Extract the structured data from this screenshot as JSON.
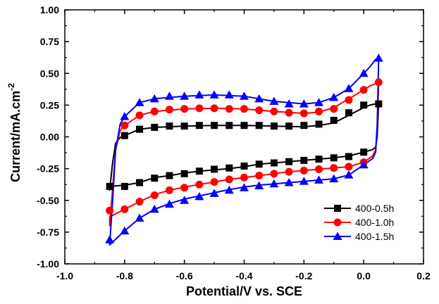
{
  "chart_data": {
    "type": "line",
    "xlabel": "Potential/V vs. SCE",
    "ylabel": "Current/mA.cm",
    "ylabel_sup": "-2",
    "xlim": [
      -1.0,
      0.2
    ],
    "ylim": [
      -1.0,
      1.0
    ],
    "x_ticks": [
      -1.0,
      -0.8,
      -0.6,
      -0.4,
      -0.2,
      0.0,
      0.2
    ],
    "x_tick_labels": [
      "-1.0",
      "-0.8",
      "-0.6",
      "-0.4",
      "-0.2",
      "0.0",
      "0.2"
    ],
    "y_ticks": [
      -1.0,
      -0.75,
      -0.5,
      -0.25,
      0.0,
      0.25,
      0.5,
      0.75,
      1.0
    ],
    "y_tick_labels": [
      "-1.00",
      "-0.75",
      "-0.50",
      "-0.25",
      "0.00",
      "0.25",
      "0.50",
      "0.75",
      "1.00"
    ],
    "grid": false,
    "legend_position": "bottom-right",
    "series": [
      {
        "name": "400-0.5h",
        "color": "#000000",
        "marker": "square",
        "anodic": [
          [
            -0.85,
            -0.42
          ],
          [
            -0.84,
            -0.2
          ],
          [
            -0.83,
            -0.05
          ],
          [
            -0.815,
            -0.005
          ],
          [
            -0.8,
            0.01
          ],
          [
            -0.75,
            0.06
          ],
          [
            -0.7,
            0.075
          ],
          [
            -0.6,
            0.085
          ],
          [
            -0.5,
            0.09
          ],
          [
            -0.4,
            0.09
          ],
          [
            -0.3,
            0.085
          ],
          [
            -0.2,
            0.08
          ],
          [
            -0.15,
            0.09
          ],
          [
            -0.1,
            0.11
          ],
          [
            -0.05,
            0.17
          ],
          [
            0.0,
            0.23
          ],
          [
            0.02,
            0.25
          ],
          [
            0.04,
            0.26
          ],
          [
            0.05,
            0.26
          ]
        ],
        "cathodic": [
          [
            0.05,
            0.26
          ],
          [
            0.045,
            0.0
          ],
          [
            0.04,
            -0.08
          ],
          [
            0.03,
            -0.1
          ],
          [
            0.0,
            -0.12
          ],
          [
            -0.05,
            -0.15
          ],
          [
            -0.1,
            -0.165
          ],
          [
            -0.15,
            -0.175
          ],
          [
            -0.2,
            -0.185
          ],
          [
            -0.25,
            -0.195
          ],
          [
            -0.3,
            -0.205
          ],
          [
            -0.35,
            -0.215
          ],
          [
            -0.4,
            -0.235
          ],
          [
            -0.45,
            -0.25
          ],
          [
            -0.5,
            -0.26
          ],
          [
            -0.55,
            -0.27
          ],
          [
            -0.6,
            -0.285
          ],
          [
            -0.65,
            -0.305
          ],
          [
            -0.7,
            -0.32
          ],
          [
            -0.75,
            -0.36
          ],
          [
            -0.8,
            -0.38
          ],
          [
            -0.85,
            -0.39
          ]
        ],
        "marker_points": [
          [
            -0.85,
            -0.39
          ],
          [
            -0.8,
            -0.39
          ],
          [
            -0.75,
            -0.36
          ],
          [
            -0.7,
            -0.325
          ],
          [
            -0.65,
            -0.305
          ],
          [
            -0.6,
            -0.29
          ],
          [
            -0.55,
            -0.27
          ],
          [
            -0.5,
            -0.255
          ],
          [
            -0.45,
            -0.245
          ],
          [
            -0.4,
            -0.23
          ],
          [
            -0.35,
            -0.215
          ],
          [
            -0.3,
            -0.205
          ],
          [
            -0.25,
            -0.195
          ],
          [
            -0.2,
            -0.185
          ],
          [
            -0.15,
            -0.175
          ],
          [
            -0.1,
            -0.165
          ],
          [
            -0.05,
            -0.155
          ],
          [
            0.0,
            -0.12
          ],
          [
            0.05,
            0.26
          ],
          [
            0.0,
            0.25
          ],
          [
            -0.05,
            0.19
          ],
          [
            -0.1,
            0.13
          ],
          [
            -0.15,
            0.1
          ],
          [
            -0.2,
            0.09
          ],
          [
            -0.25,
            0.085
          ],
          [
            -0.3,
            0.085
          ],
          [
            -0.35,
            0.09
          ],
          [
            -0.4,
            0.09
          ],
          [
            -0.45,
            0.09
          ],
          [
            -0.5,
            0.09
          ],
          [
            -0.55,
            0.09
          ],
          [
            -0.6,
            0.085
          ],
          [
            -0.65,
            0.085
          ],
          [
            -0.7,
            0.075
          ],
          [
            -0.75,
            0.06
          ],
          [
            -0.8,
            0.01
          ]
        ]
      },
      {
        "name": "400-1.0h",
        "color": "#ff0000",
        "marker": "circle",
        "anodic": [
          [
            -0.85,
            -0.7
          ],
          [
            -0.84,
            -0.4
          ],
          [
            -0.83,
            -0.1
          ],
          [
            -0.815,
            0.05
          ],
          [
            -0.8,
            0.09
          ],
          [
            -0.75,
            0.17
          ],
          [
            -0.7,
            0.2
          ],
          [
            -0.6,
            0.22
          ],
          [
            -0.5,
            0.225
          ],
          [
            -0.4,
            0.22
          ],
          [
            -0.3,
            0.2
          ],
          [
            -0.2,
            0.185
          ],
          [
            -0.15,
            0.195
          ],
          [
            -0.1,
            0.23
          ],
          [
            -0.05,
            0.3
          ],
          [
            0.0,
            0.37
          ],
          [
            0.02,
            0.4
          ],
          [
            0.04,
            0.42
          ],
          [
            0.05,
            0.43
          ]
        ],
        "cathodic": [
          [
            0.05,
            0.43
          ],
          [
            0.045,
            0.05
          ],
          [
            0.04,
            -0.1
          ],
          [
            0.03,
            -0.15
          ],
          [
            0.0,
            -0.2
          ],
          [
            -0.05,
            -0.235
          ],
          [
            -0.1,
            -0.245
          ],
          [
            -0.15,
            -0.255
          ],
          [
            -0.2,
            -0.265
          ],
          [
            -0.25,
            -0.275
          ],
          [
            -0.3,
            -0.29
          ],
          [
            -0.35,
            -0.305
          ],
          [
            -0.4,
            -0.32
          ],
          [
            -0.45,
            -0.335
          ],
          [
            -0.5,
            -0.355
          ],
          [
            -0.55,
            -0.375
          ],
          [
            -0.6,
            -0.395
          ],
          [
            -0.65,
            -0.42
          ],
          [
            -0.7,
            -0.455
          ],
          [
            -0.75,
            -0.51
          ],
          [
            -0.8,
            -0.57
          ],
          [
            -0.85,
            -0.63
          ]
        ],
        "marker_points": [
          [
            -0.85,
            -0.58
          ],
          [
            -0.8,
            -0.57
          ],
          [
            -0.75,
            -0.51
          ],
          [
            -0.7,
            -0.46
          ],
          [
            -0.65,
            -0.42
          ],
          [
            -0.6,
            -0.4
          ],
          [
            -0.55,
            -0.375
          ],
          [
            -0.5,
            -0.355
          ],
          [
            -0.45,
            -0.335
          ],
          [
            -0.4,
            -0.32
          ],
          [
            -0.35,
            -0.305
          ],
          [
            -0.3,
            -0.29
          ],
          [
            -0.25,
            -0.275
          ],
          [
            -0.2,
            -0.265
          ],
          [
            -0.15,
            -0.255
          ],
          [
            -0.1,
            -0.245
          ],
          [
            -0.05,
            -0.235
          ],
          [
            0.0,
            -0.2
          ],
          [
            0.05,
            0.43
          ],
          [
            0.0,
            0.37
          ],
          [
            -0.05,
            0.29
          ],
          [
            -0.1,
            0.22
          ],
          [
            -0.15,
            0.2
          ],
          [
            -0.2,
            0.185
          ],
          [
            -0.25,
            0.19
          ],
          [
            -0.3,
            0.2
          ],
          [
            -0.35,
            0.21
          ],
          [
            -0.4,
            0.22
          ],
          [
            -0.45,
            0.22
          ],
          [
            -0.5,
            0.225
          ],
          [
            -0.55,
            0.225
          ],
          [
            -0.6,
            0.22
          ],
          [
            -0.65,
            0.215
          ],
          [
            -0.7,
            0.2
          ],
          [
            -0.75,
            0.17
          ],
          [
            -0.8,
            0.09
          ]
        ]
      },
      {
        "name": "400-1.5h",
        "color": "#0000ff",
        "marker": "triangle",
        "anodic": [
          [
            -0.85,
            -0.85
          ],
          [
            -0.84,
            -0.5
          ],
          [
            -0.83,
            -0.1
          ],
          [
            -0.815,
            0.1
          ],
          [
            -0.8,
            0.16
          ],
          [
            -0.75,
            0.27
          ],
          [
            -0.7,
            0.3
          ],
          [
            -0.6,
            0.32
          ],
          [
            -0.5,
            0.33
          ],
          [
            -0.4,
            0.32
          ],
          [
            -0.3,
            0.28
          ],
          [
            -0.2,
            0.26
          ],
          [
            -0.15,
            0.27
          ],
          [
            -0.1,
            0.31
          ],
          [
            -0.05,
            0.38
          ],
          [
            0.0,
            0.5
          ],
          [
            0.02,
            0.55
          ],
          [
            0.04,
            0.61
          ],
          [
            0.05,
            0.62
          ]
        ],
        "cathodic": [
          [
            0.05,
            0.62
          ],
          [
            0.045,
            0.1
          ],
          [
            0.04,
            -0.12
          ],
          [
            0.03,
            -0.17
          ],
          [
            0.0,
            -0.22
          ],
          [
            -0.05,
            -0.3
          ],
          [
            -0.1,
            -0.33
          ],
          [
            -0.15,
            -0.34
          ],
          [
            -0.2,
            -0.35
          ],
          [
            -0.25,
            -0.36
          ],
          [
            -0.3,
            -0.37
          ],
          [
            -0.35,
            -0.38
          ],
          [
            -0.4,
            -0.395
          ],
          [
            -0.45,
            -0.415
          ],
          [
            -0.5,
            -0.44
          ],
          [
            -0.55,
            -0.465
          ],
          [
            -0.6,
            -0.49
          ],
          [
            -0.65,
            -0.525
          ],
          [
            -0.7,
            -0.57
          ],
          [
            -0.75,
            -0.64
          ],
          [
            -0.8,
            -0.74
          ],
          [
            -0.85,
            -0.85
          ]
        ],
        "marker_points": [
          [
            -0.85,
            -0.81
          ],
          [
            -0.8,
            -0.74
          ],
          [
            -0.75,
            -0.64
          ],
          [
            -0.7,
            -0.57
          ],
          [
            -0.65,
            -0.53
          ],
          [
            -0.6,
            -0.5
          ],
          [
            -0.55,
            -0.47
          ],
          [
            -0.5,
            -0.445
          ],
          [
            -0.45,
            -0.42
          ],
          [
            -0.4,
            -0.4
          ],
          [
            -0.35,
            -0.385
          ],
          [
            -0.3,
            -0.37
          ],
          [
            -0.25,
            -0.36
          ],
          [
            -0.2,
            -0.35
          ],
          [
            -0.15,
            -0.34
          ],
          [
            -0.1,
            -0.33
          ],
          [
            -0.05,
            -0.3
          ],
          [
            0.0,
            -0.22
          ],
          [
            0.05,
            0.62
          ],
          [
            0.0,
            0.5
          ],
          [
            -0.05,
            0.38
          ],
          [
            -0.1,
            0.31
          ],
          [
            -0.15,
            0.27
          ],
          [
            -0.2,
            0.26
          ],
          [
            -0.25,
            0.26
          ],
          [
            -0.3,
            0.28
          ],
          [
            -0.35,
            0.3
          ],
          [
            -0.4,
            0.32
          ],
          [
            -0.45,
            0.33
          ],
          [
            -0.5,
            0.33
          ],
          [
            -0.55,
            0.33
          ],
          [
            -0.6,
            0.32
          ],
          [
            -0.65,
            0.32
          ],
          [
            -0.7,
            0.3
          ],
          [
            -0.75,
            0.27
          ],
          [
            -0.8,
            0.16
          ]
        ]
      }
    ]
  }
}
